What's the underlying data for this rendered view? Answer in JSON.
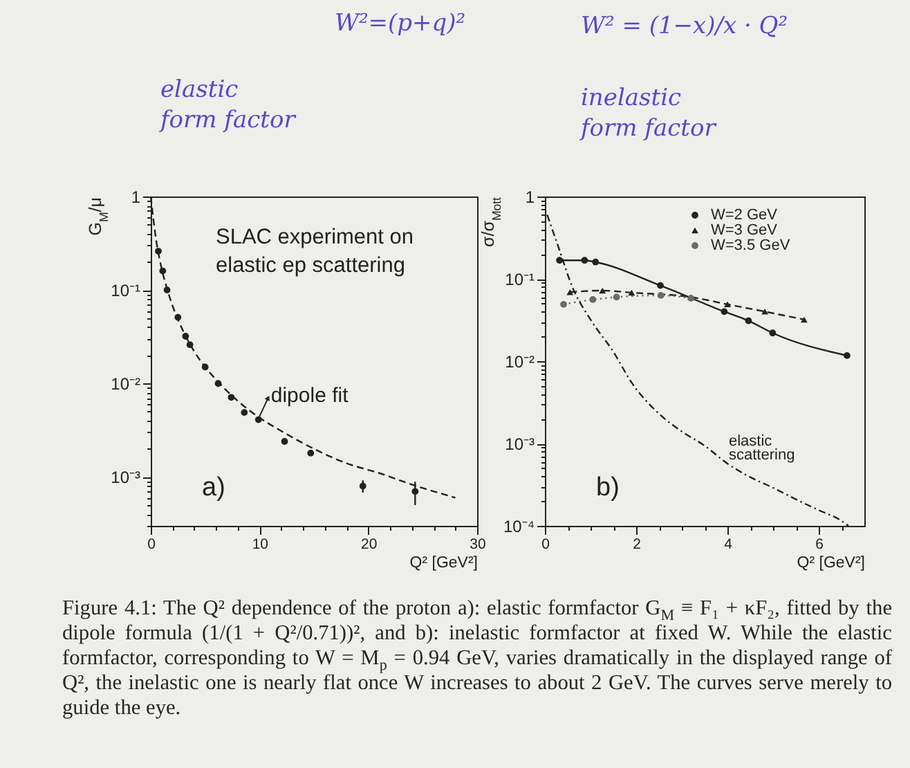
{
  "chart_data": [
    {
      "type": "scatter",
      "title": "a)",
      "xlabel": "Q² [GeV²]",
      "ylabel": "G$_{M}$/μ",
      "xlim": [
        0,
        30
      ],
      "xticks": [
        0,
        {
          "value": 2,
          "label": null
        },
        {
          "value": 4,
          "label": null
        },
        {
          "value": 6,
          "label": null
        },
        {
          "value": 8,
          "label": null
        },
        10,
        {
          "value": 12,
          "label": null
        },
        {
          "value": 14,
          "label": null
        },
        {
          "value": 16,
          "label": null
        },
        {
          "value": 18,
          "label": null
        },
        20,
        {
          "value": 22,
          "label": null
        },
        {
          "value": 24,
          "label": null
        },
        {
          "value": 26,
          "label": null
        },
        {
          "value": 28,
          "label": null
        },
        30
      ],
      "ylim": [
        0.0003,
        1
      ],
      "yticks": [
        {
          "value": 0.0003,
          "label": null
        },
        {
          "value": 0.0004,
          "label": null
        },
        {
          "value": 0.0005,
          "label": null
        },
        {
          "value": 0.0006,
          "label": null
        },
        {
          "value": 0.0007,
          "label": null
        },
        {
          "value": 0.0008,
          "label": null
        },
        {
          "value": 0.0009,
          "label": null
        },
        {
          "value": 0.001,
          "label": "10⁻³"
        },
        {
          "value": 0.002,
          "label": null
        },
        {
          "value": 0.003,
          "label": null
        },
        {
          "value": 0.004,
          "label": null
        },
        {
          "value": 0.005,
          "label": null
        },
        {
          "value": 0.006,
          "label": null
        },
        {
          "value": 0.007,
          "label": null
        },
        {
          "value": 0.008,
          "label": null
        },
        {
          "value": 0.009,
          "label": null
        },
        {
          "value": 0.01,
          "label": "10⁻²"
        },
        {
          "value": 0.02,
          "label": null
        },
        {
          "value": 0.03,
          "label": null
        },
        {
          "value": 0.04,
          "label": null
        },
        {
          "value": 0.05,
          "label": null
        },
        {
          "value": 0.06,
          "label": null
        },
        {
          "value": 0.07,
          "label": null
        },
        {
          "value": 0.08,
          "label": null
        },
        {
          "value": 0.09,
          "label": null
        },
        {
          "value": 0.1,
          "label": "10⁻¹"
        },
        {
          "value": 0.2,
          "label": null
        },
        {
          "value": 0.3,
          "label": null
        },
        {
          "value": 0.4,
          "label": null
        },
        {
          "value": 0.5,
          "label": null
        },
        {
          "value": 0.6,
          "label": null
        },
        {
          "value": 0.7,
          "label": null
        },
        {
          "value": 0.8,
          "label": null
        },
        {
          "value": 0.9,
          "label": null
        },
        1
      ],
      "log": "y",
      "series": [
        {
          "color": "#222222",
          "marker": "circle",
          "x": [
            0.7,
            1.1,
            1.5,
            2.5,
            3.2,
            3.6,
            5.0,
            6.2,
            7.4,
            8.6,
            9.9,
            12.3,
            14.7,
            19.5,
            24.3
          ],
          "values": [
            0.26,
            0.16,
            0.1,
            0.051,
            0.032,
            0.026,
            0.015,
            0.01,
            0.0071,
            0.0049,
            0.0041,
            0.0024,
            0.0018,
            0.0008,
            0.0007
          ],
          "errors": [
            null,
            null,
            null,
            null,
            null,
            null,
            null,
            null,
            null,
            null,
            null,
            null,
            null,
            [
              0.00068,
              0.00092
            ],
            [
              0.0005,
              0.00089
            ]
          ]
        },
        {
          "type": "line",
          "color": "#222222",
          "line_style": "dashed",
          "x": [
            0,
            0.5,
            1,
            1.5,
            2,
            3,
            4,
            5,
            6,
            8,
            10,
            12,
            15,
            18,
            21,
            24,
            28
          ],
          "values": [
            1.0,
            0.34,
            0.17,
            0.103,
            0.068,
            0.036,
            0.022,
            0.015,
            0.011,
            0.0065,
            0.0043,
            0.0031,
            0.002,
            0.0014,
            0.0011,
            0.00083,
            0.0006
          ]
        }
      ],
      "annotations": [
        "SLAC experiment on\nelastic ep scattering",
        {
          "text": "dipole fit",
          "x": 9.9,
          "y": 0.0042
        },
        "W²=(p+q)²",
        "elastic\nform factor"
      ]
    },
    {
      "type": "line",
      "title": "b)",
      "xlabel": "Q² [GeV²]",
      "ylabel": "σ/σ$_{Mott}$",
      "xlim": [
        0,
        7
      ],
      "xticks": [
        0,
        {
          "value": 0.5,
          "label": null
        },
        {
          "value": 1,
          "label": null
        },
        {
          "value": 1.5,
          "label": null
        },
        2,
        {
          "value": 2.5,
          "label": null
        },
        {
          "value": 3,
          "label": null
        },
        {
          "value": 3.5,
          "label": null
        },
        4,
        {
          "value": 4.5,
          "label": null
        },
        {
          "value": 5,
          "label": null
        },
        {
          "value": 5.5,
          "label": null
        },
        6,
        {
          "value": 6.5,
          "label": null
        }
      ],
      "ylim": [
        0.0001,
        1
      ],
      "yticks": [
        {
          "value": 0.0001,
          "label": "10⁻⁴"
        },
        {
          "value": 0.0002,
          "label": null
        },
        {
          "value": 0.0003,
          "label": null
        },
        {
          "value": 0.0004,
          "label": null
        },
        {
          "value": 0.0005,
          "label": null
        },
        {
          "value": 0.0006,
          "label": null
        },
        {
          "value": 0.0007,
          "label": null
        },
        {
          "value": 0.0008,
          "label": null
        },
        {
          "value": 0.0009,
          "label": null
        },
        {
          "value": 0.001,
          "label": "10⁻³"
        },
        {
          "value": 0.002,
          "label": null
        },
        {
          "value": 0.003,
          "label": null
        },
        {
          "value": 0.004,
          "label": null
        },
        {
          "value": 0.005,
          "label": null
        },
        {
          "value": 0.006,
          "label": null
        },
        {
          "value": 0.007,
          "label": null
        },
        {
          "value": 0.008,
          "label": null
        },
        {
          "value": 0.009,
          "label": null
        },
        {
          "value": 0.01,
          "label": "10⁻²"
        },
        {
          "value": 0.02,
          "label": null
        },
        {
          "value": 0.03,
          "label": null
        },
        {
          "value": 0.04,
          "label": null
        },
        {
          "value": 0.05,
          "label": null
        },
        {
          "value": 0.06,
          "label": null
        },
        {
          "value": 0.07,
          "label": null
        },
        {
          "value": 0.08,
          "label": null
        },
        {
          "value": 0.09,
          "label": null
        },
        {
          "value": 0.1,
          "label": "10⁻¹"
        },
        {
          "value": 0.2,
          "label": null
        },
        {
          "value": 0.3,
          "label": null
        },
        {
          "value": 0.4,
          "label": null
        },
        {
          "value": 0.5,
          "label": null
        },
        {
          "value": 0.6,
          "label": null
        },
        {
          "value": 0.7,
          "label": null
        },
        {
          "value": 0.8,
          "label": null
        },
        {
          "value": 0.9,
          "label": null
        },
        1
      ],
      "log": "y",
      "legend": "top right",
      "series": [
        {
          "name": "W=2 GeV",
          "color": "#222222",
          "marker": "circle",
          "line_style": "solid",
          "x": [
            0.32,
            0.87,
            1.11,
            2.53,
            3.93,
            4.46,
            4.99,
            6.62
          ],
          "values": [
            0.168,
            0.168,
            0.16,
            0.083,
            0.04,
            0.031,
            0.022,
            0.0117
          ]
        },
        {
          "name": "W=3 GeV",
          "color": "#222222",
          "marker": "triangle",
          "line_style": "dashed",
          "x": [
            0.55,
            1.26,
            1.9,
            3.2,
            4.0,
            4.82,
            5.68
          ],
          "values": [
            0.069,
            0.072,
            0.068,
            0.06,
            0.049,
            0.04,
            0.032
          ]
        },
        {
          "name": "W=3.5 GeV",
          "color": "#6a6a6a",
          "marker": "circle",
          "line_style": "dotted",
          "x": [
            0.41,
            1.05,
            1.57,
            2.54,
            3.2
          ],
          "values": [
            0.049,
            0.056,
            0.06,
            0.063,
            0.058
          ]
        },
        {
          "color": "#222222",
          "line_style": "dashdot",
          "x": [
            0.05,
            0.3,
            0.6,
            1.0,
            1.5,
            1.9,
            2.5,
            3.0,
            3.5,
            4.0,
            4.5,
            5.0,
            5.5,
            6.0,
            6.5,
            6.65
          ],
          "values": [
            0.6,
            0.24,
            0.08,
            0.032,
            0.013,
            0.0055,
            0.0023,
            0.0014,
            0.00094,
            0.00057,
            0.00039,
            0.00029,
            0.00021,
            0.000155,
            0.000115,
            0.0001
          ]
        }
      ],
      "annotations": [
        "elastic\nscattering",
        "W² = (1−x)/x · Q²",
        "inelastic\nform factor",
        "Figure 4.1: The Q² dependence of the proton a): elastic formfactor G$_{M}$ ≡ F₁ + κF₂, fitted by the dipole formula (1/(1 + Q²/0.71))², and b): inelastic formfactor at fixed W. While the elastic formfactor, corresponding to W = M$_{p}$ = 0.94 GeV, varies dramatically in the displayed range of Q², the inelastic one is nearly flat once W increases to about 2 GeV. The curves serve merely to guide the eye."
      ]
    }
  ]
}
